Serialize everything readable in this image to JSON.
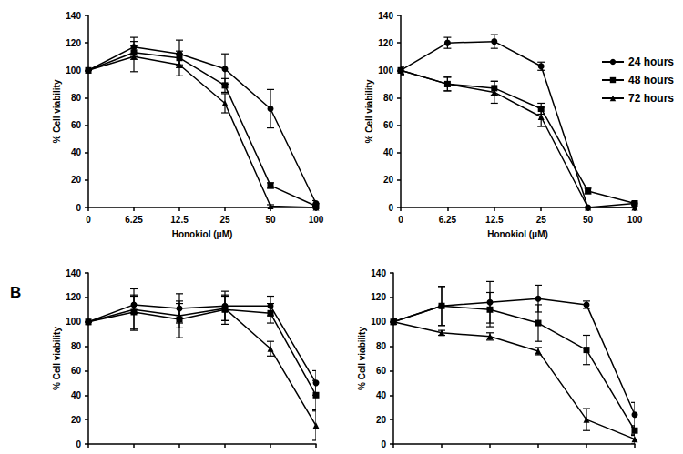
{
  "chart_data": [
    {
      "type": "line",
      "y_label": "% Cell viability",
      "x_label": "Honokiol (μM)",
      "categories": [
        "0",
        "6.25",
        "12.5",
        "25",
        "50",
        "100"
      ],
      "ylim": [
        0,
        140
      ],
      "yticks": [
        0,
        20,
        40,
        60,
        80,
        100,
        120,
        140
      ],
      "grid": false,
      "series": [
        {
          "name": "24 hours",
          "color": "#000000",
          "marker": "circle",
          "values": [
            100,
            117,
            112,
            101,
            72,
            3
          ],
          "errors": [
            0,
            7,
            10,
            11,
            14,
            2
          ]
        },
        {
          "name": "48 hours",
          "color": "#000000",
          "marker": "square",
          "values": [
            100,
            113,
            109,
            89,
            16,
            1
          ],
          "errors": [
            0,
            5,
            5,
            5,
            2,
            1
          ]
        },
        {
          "name": "72 hours",
          "color": "#000000",
          "marker": "triangle",
          "values": [
            100,
            110,
            104,
            76,
            1,
            0
          ],
          "errors": [
            0,
            11,
            8,
            7,
            1,
            0
          ]
        }
      ]
    },
    {
      "type": "line",
      "y_label": "% Cell viability",
      "x_label": "Honokiol (μM)",
      "categories": [
        "0",
        "6.25",
        "12.5",
        "25",
        "50",
        "100"
      ],
      "ylim": [
        0,
        140
      ],
      "yticks": [
        0,
        20,
        40,
        60,
        80,
        100,
        120,
        140
      ],
      "grid": false,
      "legend": "upper right",
      "series": [
        {
          "name": "24 hours",
          "color": "#000000",
          "marker": "circle",
          "values": [
            100,
            120,
            121,
            103,
            0,
            3
          ],
          "errors": [
            3,
            4,
            5,
            3,
            0,
            1
          ]
        },
        {
          "name": "48 hours",
          "color": "#000000",
          "marker": "square",
          "values": [
            100,
            90,
            87,
            72,
            12,
            3
          ],
          "errors": [
            3,
            5,
            5,
            4,
            2,
            1
          ]
        },
        {
          "name": "72 hours",
          "color": "#000000",
          "marker": "triangle",
          "values": [
            100,
            90,
            84,
            66,
            0,
            0
          ],
          "errors": [
            3,
            5,
            8,
            7,
            0,
            0
          ]
        }
      ]
    },
    {
      "type": "line",
      "y_label": "% Cell viability",
      "panel_label": "B",
      "categories": [
        null,
        null,
        null,
        null,
        null,
        null
      ],
      "tick_labels": "y",
      "ylim": [
        0,
        140
      ],
      "yticks": [
        0,
        20,
        40,
        60,
        80,
        100,
        120,
        140
      ],
      "grid": false,
      "series": [
        {
          "name": "24 hours",
          "color": "#000000",
          "marker": "circle",
          "values": [
            100,
            114,
            111,
            113,
            113,
            50
          ],
          "errors": [
            0,
            7,
            12,
            12,
            8,
            10
          ]
        },
        {
          "name": "48 hours",
          "color": "#000000",
          "marker": "square",
          "values": [
            100,
            108,
            102,
            110,
            107,
            40
          ],
          "errors": [
            0,
            14,
            15,
            12,
            8,
            12
          ]
        },
        {
          "name": "72 hours",
          "color": "#000000",
          "marker": "triangle",
          "values": [
            100,
            110,
            105,
            111,
            78,
            15
          ],
          "errors": [
            0,
            17,
            10,
            10,
            6,
            12
          ]
        }
      ]
    },
    {
      "type": "line",
      "y_label": "% Cell viability",
      "categories": [
        null,
        null,
        null,
        null,
        null,
        null
      ],
      "tick_labels": "y",
      "ylim": [
        0,
        140
      ],
      "yticks": [
        0,
        20,
        40,
        60,
        80,
        100,
        120,
        140
      ],
      "grid": false,
      "series": [
        {
          "name": "24 hours",
          "color": "#000000",
          "marker": "circle",
          "values": [
            100,
            113,
            116,
            119,
            114,
            24
          ],
          "errors": [
            2,
            16,
            17,
            11,
            3,
            10
          ]
        },
        {
          "name": "48 hours",
          "color": "#000000",
          "marker": "square",
          "values": [
            100,
            113,
            110,
            99,
            77,
            11
          ],
          "errors": [
            2,
            16,
            14,
            15,
            12,
            4
          ]
        },
        {
          "name": "72 hours",
          "color": "#000000",
          "marker": "triangle",
          "values": [
            100,
            91,
            88,
            76,
            20,
            4
          ],
          "errors": [
            2,
            2,
            3,
            3,
            9,
            4
          ]
        }
      ]
    }
  ]
}
